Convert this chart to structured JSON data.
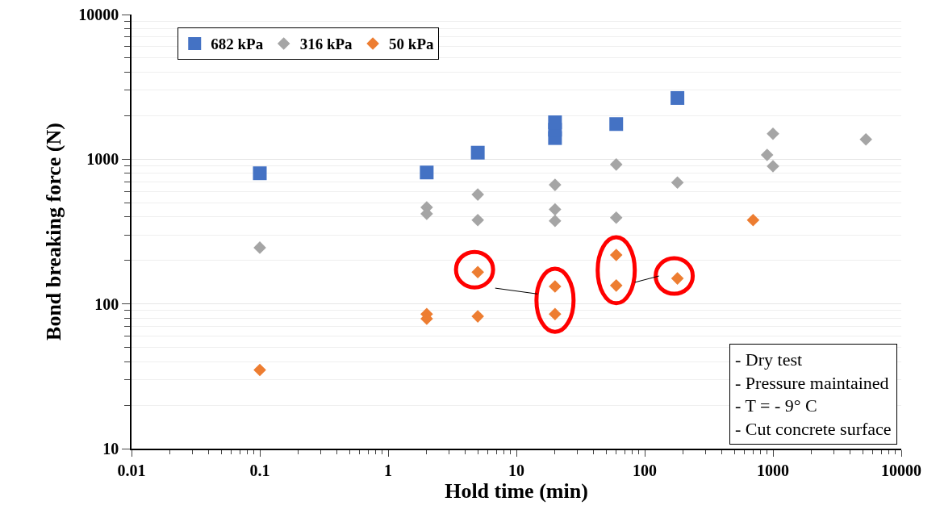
{
  "chart_data": {
    "type": "scatter",
    "xlabel": "Hold time (min)",
    "ylabel": "Bond breaking force (N)",
    "log": "xy",
    "xlim": [
      0.01,
      10000
    ],
    "xticks": [
      0.01,
      0.1,
      1,
      10,
      100,
      1000,
      10000
    ],
    "ylim": [
      10,
      10000
    ],
    "yticks": [
      10,
      100,
      1000,
      10000
    ],
    "grid": "y",
    "legend": "top left",
    "series": [
      {
        "name": "682 kPa",
        "color": "#4472c4",
        "marker": "square",
        "x": [
          0.1,
          2,
          5,
          20,
          20,
          20,
          60,
          180
        ],
        "values": [
          800,
          810,
          1110,
          1400,
          1600,
          1800,
          1750,
          2650
        ]
      },
      {
        "name": "316 kPa",
        "color": "#a5a5a5",
        "marker": "diamond",
        "x": [
          0.1,
          2,
          2,
          5,
          5,
          20,
          20,
          20,
          60,
          60,
          180,
          900,
          1000,
          1000,
          5300
        ],
        "values": [
          245,
          465,
          420,
          570,
          380,
          665,
          450,
          375,
          920,
          395,
          690,
          1070,
          1500,
          895,
          1370
        ]
      },
      {
        "name": "50 kPa",
        "color": "#ed7d31",
        "marker": "diamond",
        "x": [
          0.1,
          2,
          2,
          5,
          5,
          20,
          20,
          60,
          60,
          180,
          700
        ],
        "values": [
          35,
          85,
          79,
          82,
          166,
          132,
          85,
          218,
          134,
          150,
          380
        ]
      }
    ],
    "annotations": [
      "- Dry test",
      "- Pressure maintained",
      "- T = - 9° C",
      "- Cut concrete surface"
    ]
  }
}
